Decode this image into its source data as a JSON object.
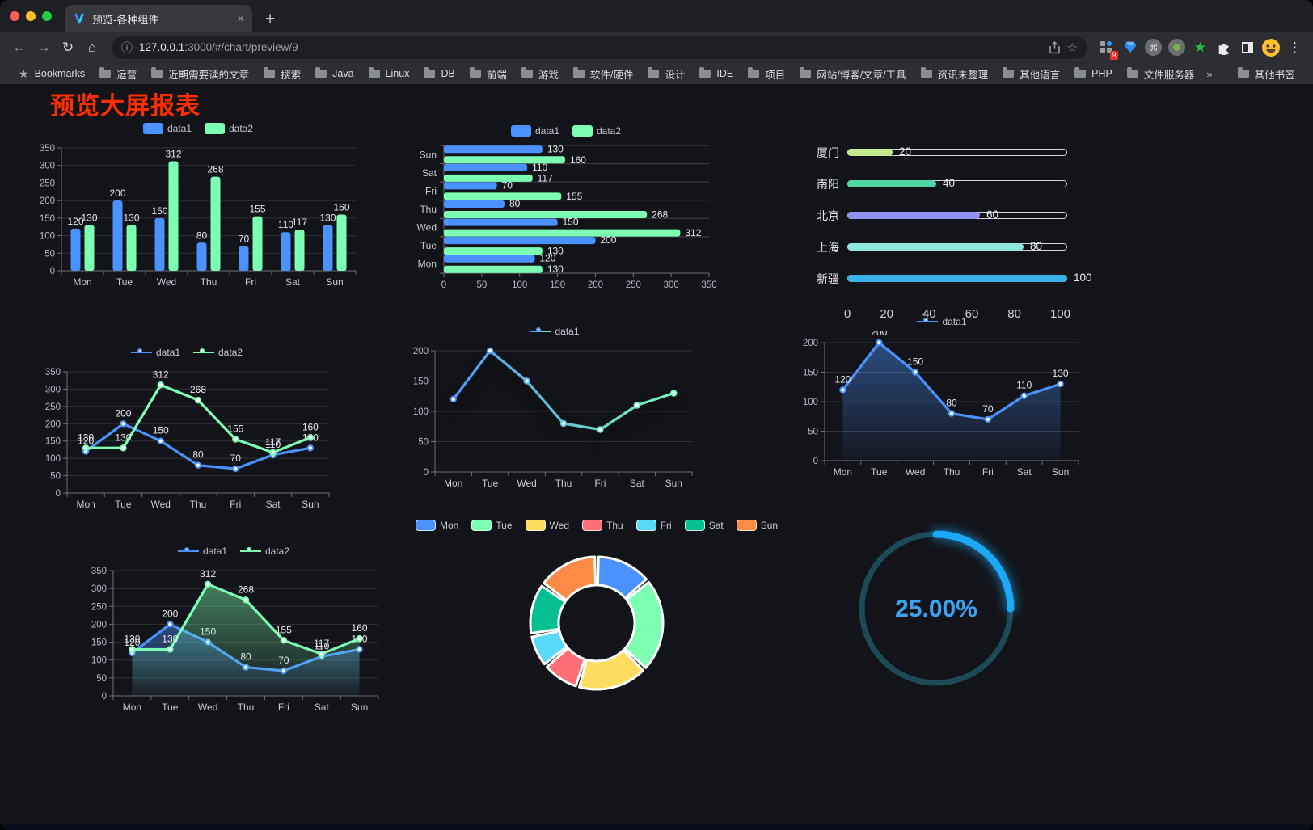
{
  "browser": {
    "window_controls": [
      "close",
      "minimize",
      "zoom"
    ],
    "tab": {
      "title": "预览-各种组件",
      "close_glyph": "×",
      "favicon": "v-logo-icon"
    },
    "new_tab_glyph": "+",
    "nav": {
      "back_glyph": "←",
      "forward_glyph": "→",
      "reload_glyph": "↻",
      "home_glyph": "⌂"
    },
    "omnibox": {
      "info_glyph": "ⓘ",
      "url_host": "127.0.0.1",
      "url_rest": ":3000/#/chart/preview/9",
      "bookmark_star_glyph": "☆"
    },
    "extensions": [
      {
        "name": "proxy-grid-extension",
        "badge": "9"
      },
      {
        "name": "gem-extension"
      },
      {
        "name": "command-circle-extension",
        "glyph": "⌘"
      },
      {
        "name": "record-circle-extension"
      },
      {
        "name": "green-star-extension",
        "glyph": "★"
      },
      {
        "name": "puzzle-extensions-menu"
      },
      {
        "name": "contrast-square-extension"
      }
    ],
    "profile": {
      "avatar": "smiley-face"
    },
    "menu_glyph": "⋮",
    "bookmarks": {
      "star_glyph": "★",
      "label": "Bookmarks",
      "folders": [
        "运营",
        "近期需要读的文章",
        "搜索",
        "Java",
        "Linux",
        "DB",
        "前端",
        "游戏",
        "软件/硬件",
        "设计",
        "IDE",
        "项目",
        "网站/博客/文章/工具",
        "资讯未整理",
        "其他语言",
        "PHP",
        "文件服务器"
      ],
      "overflow_glyph": "»",
      "other_bookmarks": "其他书签"
    }
  },
  "page": {
    "title": "预览大屏报表",
    "title_color": "#ff2d00"
  },
  "chart_data": [
    {
      "id": "grouped-bar",
      "type": "bar",
      "categories": [
        "Mon",
        "Tue",
        "Wed",
        "Thu",
        "Fri",
        "Sat",
        "Sun"
      ],
      "series": [
        {
          "name": "data1",
          "color": "#4992ff",
          "values": [
            120,
            200,
            150,
            80,
            70,
            110,
            130
          ]
        },
        {
          "name": "data2",
          "color": "#7cffb2",
          "values": [
            130,
            130,
            312,
            268,
            155,
            117,
            160
          ]
        }
      ],
      "ylim": [
        0,
        350
      ],
      "ystep": 50,
      "value_labels": true,
      "legend_position": "top",
      "grid": true
    },
    {
      "id": "horizontal-bar",
      "type": "hbar",
      "categories": [
        "Mon",
        "Tue",
        "Wed",
        "Thu",
        "Fri",
        "Sat",
        "Sun"
      ],
      "series": [
        {
          "name": "data1",
          "color": "#4992ff",
          "values": [
            120,
            200,
            150,
            80,
            70,
            110,
            130
          ]
        },
        {
          "name": "data2",
          "color": "#7cffb2",
          "values": [
            130,
            130,
            312,
            268,
            155,
            117,
            160
          ]
        }
      ],
      "xlim": [
        0,
        350
      ],
      "xstep": 50,
      "value_labels": true,
      "legend_position": "top"
    },
    {
      "id": "city-progress",
      "type": "progress",
      "items": [
        {
          "label": "厦门",
          "value": 20,
          "color": "#c3e88d"
        },
        {
          "label": "南阳",
          "value": 40,
          "color": "#4fd6a3"
        },
        {
          "label": "北京",
          "value": 60,
          "color": "#8f92ef"
        },
        {
          "label": "上海",
          "value": 80,
          "color": "#8ee8e0"
        },
        {
          "label": "新疆",
          "value": 100,
          "color": "#38b3e8"
        }
      ],
      "max": 100,
      "axis_ticks": [
        0,
        20,
        40,
        60,
        80,
        100
      ]
    },
    {
      "id": "two-series-line",
      "type": "line",
      "categories": [
        "Mon",
        "Tue",
        "Wed",
        "Thu",
        "Fri",
        "Sat",
        "Sun"
      ],
      "series": [
        {
          "name": "data1",
          "color": "#4992ff",
          "values": [
            120,
            200,
            150,
            80,
            70,
            110,
            130
          ]
        },
        {
          "name": "data2",
          "color": "#7cffb2",
          "values": [
            130,
            130,
            312,
            268,
            155,
            117,
            160
          ]
        }
      ],
      "ylim": [
        0,
        350
      ],
      "ystep": 50,
      "value_labels": true,
      "legend_position": "top"
    },
    {
      "id": "gradient-line",
      "type": "line",
      "categories": [
        "Mon",
        "Tue",
        "Wed",
        "Thu",
        "Fri",
        "Sat",
        "Sun"
      ],
      "series": [
        {
          "name": "data1",
          "color": "#4992ff",
          "color_end": "#7cffb2",
          "values": [
            120,
            200,
            150,
            80,
            70,
            110,
            130
          ]
        }
      ],
      "ylim": [
        0,
        200
      ],
      "ystep": 50,
      "gradient": true,
      "shadow": true,
      "value_labels": false,
      "legend_position": "top"
    },
    {
      "id": "single-area-line",
      "type": "line",
      "categories": [
        "Mon",
        "Tue",
        "Wed",
        "Thu",
        "Fri",
        "Sat",
        "Sun"
      ],
      "series": [
        {
          "name": "data1",
          "color": "#4992ff",
          "values": [
            120,
            200,
            150,
            80,
            70,
            110,
            130
          ]
        }
      ],
      "ylim": [
        0,
        200
      ],
      "ystep": 50,
      "area": true,
      "value_labels": true,
      "legend_position": "top"
    },
    {
      "id": "two-series-area",
      "type": "line",
      "categories": [
        "Mon",
        "Tue",
        "Wed",
        "Thu",
        "Fri",
        "Sat",
        "Sun"
      ],
      "series": [
        {
          "name": "data1",
          "color": "#4992ff",
          "values": [
            120,
            200,
            150,
            80,
            70,
            110,
            130
          ]
        },
        {
          "name": "data2",
          "color": "#7cffb2",
          "values": [
            130,
            130,
            312,
            268,
            155,
            117,
            160
          ]
        }
      ],
      "ylim": [
        0,
        350
      ],
      "ystep": 50,
      "area": true,
      "value_labels": true,
      "legend_position": "top"
    },
    {
      "id": "weekday-donut",
      "type": "donut",
      "categories": [
        "Mon",
        "Tue",
        "Wed",
        "Thu",
        "Fri",
        "Sat",
        "Sun"
      ],
      "values": [
        120,
        200,
        150,
        80,
        70,
        110,
        130
      ],
      "colors": [
        "#4992ff",
        "#7cffb2",
        "#fddd60",
        "#ff6e76",
        "#58d9f9",
        "#05c091",
        "#ff8a45"
      ],
      "legend_position": "top",
      "border_color": "#ffffff"
    },
    {
      "id": "ring-progress",
      "type": "ring",
      "value": 25,
      "max": 100,
      "label": "25.00%",
      "color": "#1ba9f5",
      "track_color": "#1d4a58",
      "text_color": "#3ba2f1"
    }
  ]
}
